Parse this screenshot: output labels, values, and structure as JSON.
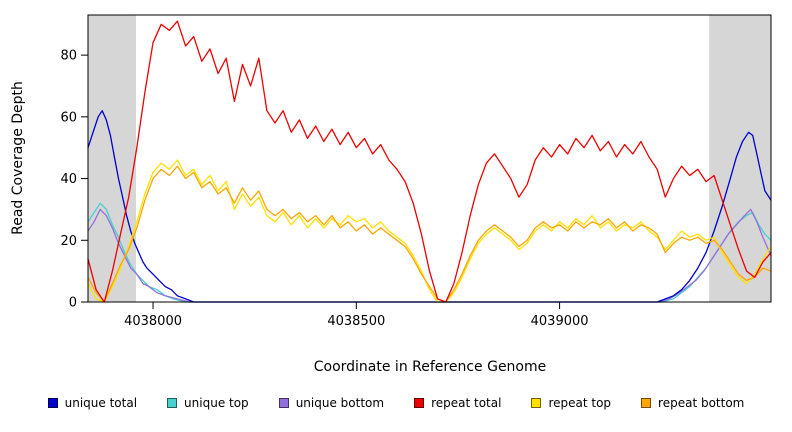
{
  "chart_data": {
    "type": "line",
    "title": "",
    "xlabel": "Coordinate in Reference Genome",
    "ylabel": "Read Coverage Depth",
    "xlim": [
      4037840,
      4039520
    ],
    "ylim": [
      0,
      93
    ],
    "x_ticks": [
      4038000,
      4038500,
      4039000
    ],
    "y_ticks": [
      0,
      20,
      40,
      60,
      80
    ],
    "grid": false,
    "legend_position": "bottom",
    "shaded_regions": [
      {
        "x0": 4037840,
        "x1": 4037958,
        "color": "#d6d6d6"
      },
      {
        "x0": 4039368,
        "x1": 4039520,
        "color": "#d6d6d6"
      }
    ],
    "series": [
      {
        "name": "unique total",
        "color": "#0000cd",
        "x": [
          4037840,
          4037855,
          4037865,
          4037875,
          4037885,
          4037895,
          4037905,
          4037915,
          4037925,
          4037935,
          4037945,
          4037955,
          4037965,
          4037975,
          4037985,
          4038000,
          4038015,
          4038030,
          4038045,
          4038060,
          4038080,
          4038100,
          4039240,
          4039260,
          4039280,
          4039300,
          4039320,
          4039340,
          4039360,
          4039380,
          4039400,
          4039420,
          4039435,
          4039450,
          4039465,
          4039475,
          4039485,
          4039495,
          4039505,
          4039520
        ],
        "y": [
          50,
          56,
          60,
          62,
          59,
          54,
          47,
          40,
          34,
          28,
          23,
          19,
          16,
          13,
          11,
          9,
          7,
          5,
          4,
          2,
          1,
          0,
          0,
          1,
          2,
          4,
          7,
          11,
          16,
          23,
          31,
          40,
          47,
          52,
          55,
          54,
          48,
          42,
          36,
          33
        ]
      },
      {
        "name": "unique top",
        "color": "#48d1cc",
        "x": [
          4037840,
          4037855,
          4037870,
          4037885,
          4037900,
          4037915,
          4037930,
          4037945,
          4037960,
          4037975,
          4037990,
          4038010,
          4038030,
          4038050,
          4038080,
          4039250,
          4039280,
          4039300,
          4039320,
          4039340,
          4039360,
          4039380,
          4039400,
          4039420,
          4039440,
          4039460,
          4039475,
          4039490,
          4039505,
          4039520
        ],
        "y": [
          26,
          29,
          32,
          30,
          25,
          21,
          16,
          12,
          9,
          7,
          5,
          4,
          2,
          1,
          0,
          0,
          1,
          3,
          5,
          8,
          11,
          15,
          19,
          23,
          26,
          28,
          29,
          25,
          22,
          20
        ]
      },
      {
        "name": "unique bottom",
        "color": "#9370db",
        "x": [
          4037840,
          4037855,
          4037870,
          4037885,
          4037900,
          4037915,
          4037930,
          4037945,
          4037960,
          4037975,
          4037990,
          4038010,
          4038030,
          4038060,
          4038090,
          4039245,
          4039270,
          4039295,
          4039315,
          4039335,
          4039355,
          4039375,
          4039395,
          4039415,
          4039435,
          4039455,
          4039470,
          4039485,
          4039500,
          4039520
        ],
        "y": [
          23,
          26,
          30,
          28,
          24,
          19,
          15,
          11,
          9,
          6,
          5,
          3,
          2,
          1,
          0,
          0,
          1,
          3,
          5,
          7,
          10,
          14,
          18,
          22,
          25,
          28,
          30,
          26,
          21,
          15
        ]
      },
      {
        "name": "repeat total",
        "color": "#ee0000",
        "x": [
          4037840,
          4037860,
          4037880,
          4037900,
          4037920,
          4037940,
          4037960,
          4037980,
          4038000,
          4038020,
          4038040,
          4038060,
          4038080,
          4038100,
          4038120,
          4038140,
          4038160,
          4038180,
          4038200,
          4038220,
          4038240,
          4038260,
          4038280,
          4038300,
          4038320,
          4038340,
          4038360,
          4038380,
          4038400,
          4038420,
          4038440,
          4038460,
          4038480,
          4038500,
          4038520,
          4038540,
          4038560,
          4038580,
          4038600,
          4038620,
          4038640,
          4038660,
          4038680,
          4038700,
          4038720,
          4038740,
          4038760,
          4038780,
          4038800,
          4038820,
          4038840,
          4038860,
          4038880,
          4038900,
          4038920,
          4038940,
          4038960,
          4038980,
          4039000,
          4039020,
          4039040,
          4039060,
          4039080,
          4039100,
          4039120,
          4039140,
          4039160,
          4039180,
          4039200,
          4039220,
          4039240,
          4039260,
          4039280,
          4039300,
          4039320,
          4039340,
          4039360,
          4039380,
          4039400,
          4039420,
          4039440,
          4039460,
          4039480,
          4039500,
          4039520
        ],
        "y": [
          14,
          4,
          0,
          10,
          22,
          34,
          50,
          68,
          84,
          90,
          88,
          91,
          83,
          86,
          78,
          82,
          74,
          79,
          65,
          77,
          70,
          79,
          62,
          58,
          62,
          55,
          59,
          53,
          57,
          52,
          56,
          51,
          55,
          50,
          53,
          48,
          51,
          46,
          43,
          39,
          32,
          22,
          10,
          1,
          0,
          6,
          16,
          28,
          38,
          45,
          48,
          44,
          40,
          34,
          38,
          46,
          50,
          47,
          51,
          48,
          53,
          50,
          54,
          49,
          52,
          47,
          51,
          48,
          52,
          47,
          43,
          34,
          40,
          44,
          41,
          43,
          39,
          41,
          33,
          25,
          17,
          10,
          8,
          13,
          16
        ]
      },
      {
        "name": "repeat top",
        "color": "#ffe100",
        "x": [
          4037840,
          4037860,
          4037880,
          4037900,
          4037920,
          4037940,
          4037960,
          4037980,
          4038000,
          4038020,
          4038040,
          4038060,
          4038080,
          4038100,
          4038120,
          4038140,
          4038160,
          4038180,
          4038200,
          4038220,
          4038240,
          4038260,
          4038280,
          4038300,
          4038320,
          4038340,
          4038360,
          4038380,
          4038400,
          4038420,
          4038440,
          4038460,
          4038480,
          4038500,
          4038520,
          4038540,
          4038560,
          4038580,
          4038600,
          4038620,
          4038640,
          4038660,
          4038680,
          4038700,
          4038720,
          4038740,
          4038760,
          4038780,
          4038800,
          4038820,
          4038840,
          4038860,
          4038880,
          4038900,
          4038920,
          4038940,
          4038960,
          4038980,
          4039000,
          4039020,
          4039040,
          4039060,
          4039080,
          4039100,
          4039120,
          4039140,
          4039160,
          4039180,
          4039200,
          4039220,
          4039240,
          4039260,
          4039280,
          4039300,
          4039320,
          4039340,
          4039360,
          4039380,
          4039400,
          4039420,
          4039440,
          4039460,
          4039480,
          4039500,
          4039520
        ],
        "y": [
          6,
          1,
          0,
          5,
          11,
          18,
          26,
          35,
          42,
          45,
          43,
          46,
          41,
          43,
          38,
          41,
          36,
          39,
          30,
          35,
          31,
          34,
          28,
          26,
          29,
          25,
          28,
          24,
          27,
          24,
          27,
          25,
          28,
          26,
          27,
          24,
          26,
          23,
          21,
          19,
          15,
          10,
          4,
          0,
          0,
          3,
          8,
          14,
          19,
          22,
          24,
          22,
          20,
          17,
          19,
          23,
          25,
          23,
          26,
          24,
          27,
          25,
          28,
          24,
          26,
          23,
          25,
          24,
          26,
          23,
          21,
          17,
          20,
          23,
          21,
          22,
          20,
          21,
          16,
          12,
          8,
          6,
          9,
          14,
          18
        ]
      },
      {
        "name": "repeat bottom",
        "color": "#ffa500",
        "x": [
          4037840,
          4037860,
          4037880,
          4037900,
          4037920,
          4037940,
          4037960,
          4037980,
          4038000,
          4038020,
          4038040,
          4038060,
          4038080,
          4038100,
          4038120,
          4038140,
          4038160,
          4038180,
          4038200,
          4038220,
          4038240,
          4038260,
          4038280,
          4038300,
          4038320,
          4038340,
          4038360,
          4038380,
          4038400,
          4038420,
          4038440,
          4038460,
          4038480,
          4038500,
          4038520,
          4038540,
          4038560,
          4038580,
          4038600,
          4038620,
          4038640,
          4038660,
          4038680,
          4038700,
          4038720,
          4038740,
          4038760,
          4038780,
          4038800,
          4038820,
          4038840,
          4038860,
          4038880,
          4038900,
          4038920,
          4038940,
          4038960,
          4038980,
          4039000,
          4039020,
          4039040,
          4039060,
          4039080,
          4039100,
          4039120,
          4039140,
          4039160,
          4039180,
          4039200,
          4039220,
          4039240,
          4039260,
          4039280,
          4039300,
          4039320,
          4039340,
          4039360,
          4039380,
          4039400,
          4039420,
          4039440,
          4039460,
          4039480,
          4039500,
          4039520
        ],
        "y": [
          8,
          3,
          0,
          6,
          12,
          17,
          24,
          33,
          40,
          43,
          41,
          44,
          40,
          42,
          37,
          39,
          35,
          37,
          32,
          37,
          33,
          36,
          30,
          28,
          30,
          27,
          29,
          26,
          28,
          25,
          28,
          24,
          26,
          23,
          25,
          22,
          24,
          22,
          20,
          18,
          14,
          9,
          5,
          1,
          0,
          4,
          9,
          15,
          20,
          23,
          25,
          23,
          21,
          18,
          20,
          24,
          26,
          24,
          25,
          23,
          26,
          24,
          26,
          25,
          27,
          24,
          26,
          23,
          25,
          24,
          22,
          16,
          19,
          21,
          20,
          21,
          19,
          20,
          17,
          13,
          9,
          7,
          8,
          11,
          10
        ]
      }
    ]
  }
}
